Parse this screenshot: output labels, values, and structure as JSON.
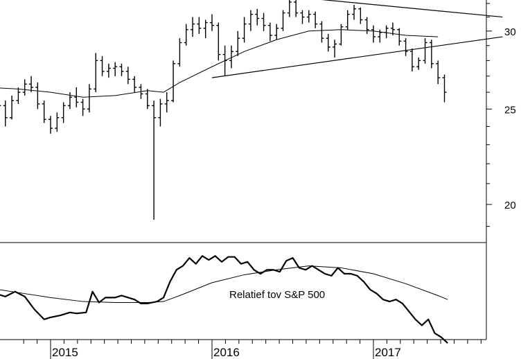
{
  "chart_data": [
    {
      "type": "ohlc",
      "title": "",
      "xlabel": "",
      "ylabel": "",
      "ylim": [
        18,
        33
      ],
      "yscale": "log",
      "y_ticks": [
        20,
        25,
        30
      ],
      "y_tick_labels": [
        "20",
        "25",
        "30"
      ],
      "price_bars": [
        [
          -40,
          26.0,
          26.5,
          26.0,
          26.3
        ],
        [
          -36,
          26.3,
          26.5,
          25.7,
          25.9
        ],
        [
          -32,
          25.9,
          26.0,
          25.0,
          25.2
        ],
        [
          -28,
          25.2,
          25.5,
          24.0,
          24.5
        ],
        [
          -24,
          24.5,
          25.8,
          24.4,
          25.5
        ],
        [
          -20,
          25.5,
          26.3,
          25.3,
          26.0
        ],
        [
          -16,
          26.0,
          26.8,
          25.8,
          26.5
        ],
        [
          -12,
          26.5,
          27.0,
          26.0,
          26.3
        ],
        [
          -8,
          26.3,
          26.6,
          25.0,
          25.3
        ],
        [
          -4,
          25.3,
          25.5,
          24.2,
          24.4
        ],
        [
          0,
          24.4,
          24.6,
          23.6,
          23.9
        ],
        [
          4,
          23.9,
          24.8,
          23.7,
          24.5
        ],
        [
          8,
          24.5,
          25.4,
          24.2,
          25.2
        ],
        [
          12,
          25.2,
          26.0,
          25.0,
          25.7
        ],
        [
          16,
          25.7,
          26.3,
          25.1,
          25.4
        ],
        [
          20,
          25.4,
          25.6,
          24.6,
          25.0
        ],
        [
          24,
          25.0,
          26.5,
          24.8,
          26.2
        ],
        [
          28,
          26.2,
          28.5,
          26.0,
          28.0
        ],
        [
          32,
          28.0,
          28.3,
          27.0,
          27.3
        ],
        [
          36,
          27.3,
          27.8,
          26.9,
          27.5
        ],
        [
          40,
          27.5,
          27.9,
          27.0,
          27.6
        ],
        [
          44,
          27.6,
          27.8,
          27.0,
          27.3
        ],
        [
          48,
          27.3,
          27.6,
          26.5,
          26.8
        ],
        [
          52,
          26.8,
          27.0,
          26.0,
          26.3
        ],
        [
          56,
          26.3,
          26.5,
          25.6,
          25.9
        ],
        [
          60,
          25.9,
          26.2,
          25.0,
          25.2
        ],
        [
          64,
          25.2,
          25.5,
          19.3,
          24.5
        ],
        [
          68,
          24.5,
          25.6,
          24.0,
          25.3
        ],
        [
          72,
          25.3,
          26.0,
          24.8,
          25.5
        ],
        [
          76,
          25.5,
          28.0,
          25.4,
          27.8
        ],
        [
          80,
          27.8,
          29.5,
          27.6,
          29.2
        ],
        [
          84,
          29.2,
          30.5,
          29.0,
          30.1
        ],
        [
          88,
          30.1,
          31.0,
          29.6,
          30.5
        ],
        [
          92,
          30.5,
          31.0,
          29.8,
          30.2
        ],
        [
          96,
          30.2,
          30.8,
          29.5,
          30.6
        ],
        [
          100,
          30.6,
          31.2,
          30.0,
          30.4
        ],
        [
          104,
          30.4,
          30.6,
          28.0,
          28.4
        ],
        [
          108,
          28.4,
          29.0,
          27.0,
          28.0
        ],
        [
          112,
          28.0,
          29.0,
          27.5,
          28.6
        ],
        [
          116,
          28.6,
          30.0,
          28.3,
          29.5
        ],
        [
          120,
          29.5,
          31.0,
          29.2,
          30.5
        ],
        [
          124,
          30.5,
          31.5,
          30.0,
          31.2
        ],
        [
          128,
          31.2,
          31.6,
          30.4,
          30.9
        ],
        [
          132,
          30.9,
          31.3,
          30.0,
          30.4
        ],
        [
          136,
          30.4,
          30.6,
          29.3,
          29.7
        ],
        [
          140,
          29.7,
          30.5,
          29.4,
          30.2
        ],
        [
          144,
          30.2,
          31.5,
          30.0,
          31.3
        ],
        [
          148,
          31.3,
          32.5,
          31.0,
          32.1
        ],
        [
          152,
          32.1,
          32.3,
          31.0,
          31.3
        ],
        [
          156,
          31.3,
          31.5,
          30.5,
          31.0
        ],
        [
          160,
          31.0,
          31.5,
          30.6,
          31.2
        ],
        [
          164,
          31.2,
          31.4,
          30.2,
          30.5
        ],
        [
          168,
          30.5,
          30.7,
          29.2,
          29.5
        ],
        [
          172,
          29.5,
          29.8,
          28.6,
          28.9
        ],
        [
          176,
          28.9,
          29.4,
          28.2,
          29.1
        ],
        [
          180,
          29.1,
          30.5,
          29.0,
          30.3
        ],
        [
          184,
          30.3,
          31.5,
          30.1,
          31.2
        ],
        [
          188,
          31.2,
          31.9,
          30.8,
          31.6
        ],
        [
          192,
          31.6,
          31.7,
          30.5,
          30.8
        ],
        [
          196,
          30.8,
          31.0,
          29.8,
          30.1
        ],
        [
          200,
          30.1,
          30.4,
          29.2,
          29.6
        ],
        [
          204,
          29.6,
          30.1,
          29.2,
          29.9
        ],
        [
          208,
          29.9,
          30.4,
          29.5,
          30.2
        ],
        [
          212,
          30.2,
          30.6,
          29.7,
          30.1
        ],
        [
          216,
          30.1,
          30.2,
          29.0,
          29.3
        ],
        [
          220,
          29.3,
          29.5,
          28.3,
          28.6
        ],
        [
          224,
          28.6,
          28.8,
          27.3,
          27.6
        ],
        [
          228,
          27.6,
          28.2,
          27.4,
          28.0
        ],
        [
          232,
          28.0,
          29.5,
          27.8,
          29.2
        ],
        [
          236,
          29.2,
          29.4,
          27.5,
          27.8
        ],
        [
          240,
          27.8,
          28.0,
          26.5,
          26.9
        ],
        [
          244,
          26.9,
          27.1,
          25.4,
          26.0
        ]
      ],
      "moving_average": [
        [
          -40,
          26.3
        ],
        [
          -20,
          26.2
        ],
        [
          0,
          26.0
        ],
        [
          20,
          25.7
        ],
        [
          40,
          25.8
        ],
        [
          60,
          26.1
        ],
        [
          70,
          26.0
        ],
        [
          80,
          26.6
        ],
        [
          100,
          27.6
        ],
        [
          120,
          28.6
        ],
        [
          140,
          29.4
        ],
        [
          160,
          30.0
        ],
        [
          180,
          30.1
        ],
        [
          200,
          30.0
        ],
        [
          220,
          29.7
        ],
        [
          240,
          29.6
        ]
      ],
      "trendlines": [
        {
          "from": [
            150,
            32.5
          ],
          "to": [
            280,
            31.0
          ]
        },
        {
          "from": [
            100,
            26.9
          ],
          "to": [
            280,
            29.6
          ]
        }
      ]
    },
    {
      "type": "line",
      "annotation": "Relatief tov S&P 500",
      "relative_series": [
        [
          -40,
          0.35
        ],
        [
          -34,
          0.36
        ],
        [
          -28,
          0.33
        ],
        [
          -22,
          0.38
        ],
        [
          -16,
          0.33
        ],
        [
          -10,
          0.2
        ],
        [
          -4,
          0.1
        ],
        [
          0,
          0.12
        ],
        [
          6,
          0.14
        ],
        [
          12,
          0.17
        ],
        [
          16,
          0.16
        ],
        [
          22,
          0.17
        ],
        [
          26,
          0.38
        ],
        [
          30,
          0.27
        ],
        [
          34,
          0.32
        ],
        [
          40,
          0.32
        ],
        [
          44,
          0.34
        ],
        [
          48,
          0.32
        ],
        [
          52,
          0.3
        ],
        [
          56,
          0.26
        ],
        [
          60,
          0.26
        ],
        [
          66,
          0.28
        ],
        [
          70,
          0.32
        ],
        [
          74,
          0.48
        ],
        [
          78,
          0.6
        ],
        [
          82,
          0.64
        ],
        [
          86,
          0.72
        ],
        [
          90,
          0.66
        ],
        [
          94,
          0.74
        ],
        [
          98,
          0.7
        ],
        [
          102,
          0.74
        ],
        [
          106,
          0.68
        ],
        [
          110,
          0.73
        ],
        [
          114,
          0.73
        ],
        [
          118,
          0.66
        ],
        [
          122,
          0.68
        ],
        [
          126,
          0.6
        ],
        [
          130,
          0.56
        ],
        [
          134,
          0.6
        ],
        [
          138,
          0.6
        ],
        [
          142,
          0.58
        ],
        [
          146,
          0.69
        ],
        [
          150,
          0.72
        ],
        [
          154,
          0.62
        ],
        [
          158,
          0.6
        ],
        [
          162,
          0.64
        ],
        [
          166,
          0.6
        ],
        [
          170,
          0.56
        ],
        [
          174,
          0.54
        ],
        [
          178,
          0.62
        ],
        [
          182,
          0.56
        ],
        [
          186,
          0.56
        ],
        [
          190,
          0.54
        ],
        [
          194,
          0.48
        ],
        [
          198,
          0.4
        ],
        [
          202,
          0.36
        ],
        [
          206,
          0.3
        ],
        [
          210,
          0.28
        ],
        [
          214,
          0.3
        ],
        [
          218,
          0.26
        ],
        [
          222,
          0.18
        ],
        [
          226,
          0.1
        ],
        [
          230,
          0.04
        ],
        [
          234,
          0.1
        ],
        [
          238,
          -0.04
        ],
        [
          242,
          -0.08
        ],
        [
          246,
          -0.14
        ]
      ],
      "relative_average": [
        [
          -40,
          0.42
        ],
        [
          -20,
          0.37
        ],
        [
          0,
          0.32
        ],
        [
          20,
          0.28
        ],
        [
          40,
          0.27
        ],
        [
          60,
          0.27
        ],
        [
          70,
          0.28
        ],
        [
          80,
          0.34
        ],
        [
          100,
          0.47
        ],
        [
          120,
          0.55
        ],
        [
          140,
          0.6
        ],
        [
          160,
          0.64
        ],
        [
          180,
          0.62
        ],
        [
          200,
          0.56
        ],
        [
          220,
          0.46
        ],
        [
          240,
          0.34
        ],
        [
          246,
          0.3
        ]
      ]
    }
  ],
  "x_axis": {
    "years": [
      {
        "label": "2015",
        "x": 0
      },
      {
        "label": "2016",
        "x": 100
      },
      {
        "label": "2017",
        "x": 200
      }
    ]
  }
}
